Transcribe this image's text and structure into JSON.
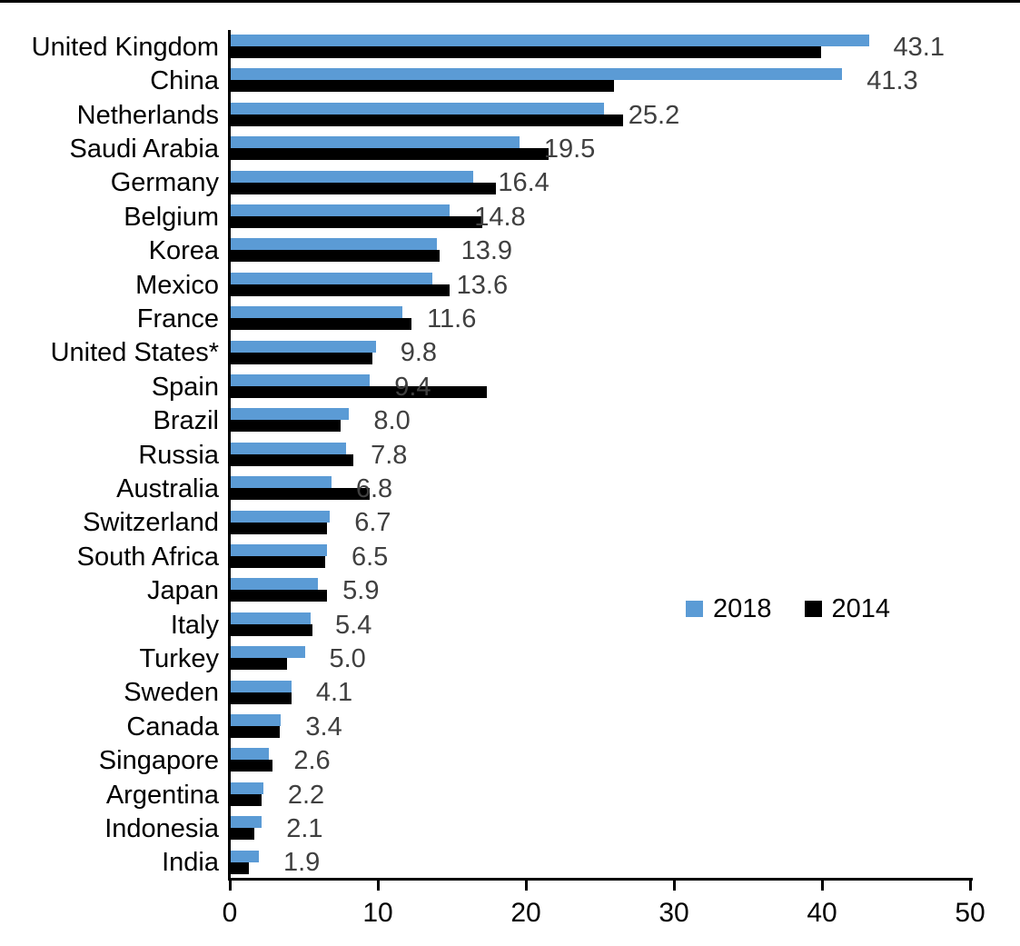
{
  "chart_data": {
    "type": "bar",
    "orientation": "horizontal",
    "title": "",
    "xlabel": "",
    "ylabel": "",
    "xlim": [
      0,
      50
    ],
    "x_ticks": [
      "0",
      "10",
      "20",
      "30",
      "40",
      "50"
    ],
    "grid": false,
    "legend_position": "middle-right",
    "categories": [
      "United Kingdom",
      "China",
      "Netherlands",
      "Saudi Arabia",
      "Germany",
      "Belgium",
      "Korea",
      "Mexico",
      "France",
      "United States*",
      "Spain",
      "Brazil",
      "Russia",
      "Australia",
      "Switzerland",
      "South Africa",
      "Japan",
      "Italy",
      "Turkey",
      "Sweden",
      "Canada",
      "Singapore",
      "Argentina",
      "Indonesia",
      "India"
    ],
    "series": [
      {
        "name": "2018",
        "color": "#5B9BD5",
        "values": [
          43.1,
          41.3,
          25.2,
          19.5,
          16.4,
          14.8,
          13.9,
          13.6,
          11.6,
          9.8,
          9.4,
          8.0,
          7.8,
          6.8,
          6.7,
          6.5,
          5.9,
          5.4,
          5.0,
          4.1,
          3.4,
          2.6,
          2.2,
          2.1,
          1.9
        ]
      },
      {
        "name": "2014",
        "color": "#000000",
        "values": [
          39.9,
          25.9,
          26.5,
          21.5,
          17.9,
          17.0,
          14.1,
          14.8,
          12.2,
          9.6,
          17.3,
          7.4,
          8.3,
          9.4,
          6.5,
          6.4,
          6.5,
          5.5,
          3.8,
          4.1,
          3.3,
          2.8,
          2.1,
          1.6,
          1.2
        ]
      }
    ],
    "data_labels": {
      "labeled_series": "2018",
      "labels": [
        "43.1",
        "41.3",
        "25.2",
        "19.5",
        "16.4",
        "14.8",
        "13.9",
        "13.6",
        "11.6",
        "9.8",
        "9.4",
        "8.0",
        "7.8",
        "6.8",
        "6.7",
        "6.5",
        "5.9",
        "5.4",
        "5.0",
        "4.1",
        "3.4",
        "2.6",
        "2.2",
        "2.1",
        "1.9"
      ],
      "color": "#404040"
    },
    "legend": [
      {
        "label": "2018",
        "color": "#5B9BD5"
      },
      {
        "label": "2014",
        "color": "#000000"
      }
    ],
    "axis_color": "#000000"
  }
}
